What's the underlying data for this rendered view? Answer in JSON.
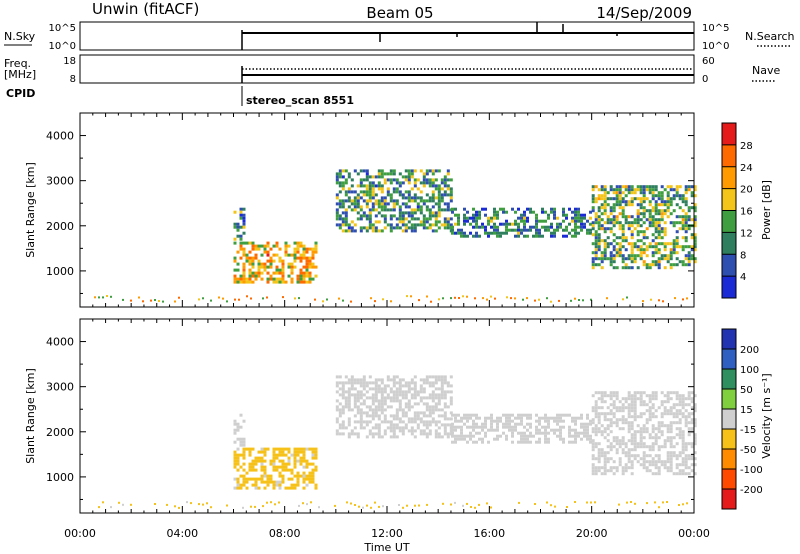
{
  "header": {
    "station": "Unwin (fitACF)",
    "beam": "Beam 05",
    "date": "14/Sep/2009"
  },
  "panels": {
    "nsky": {
      "left_label": "N.Sky",
      "right_label": "N.Search",
      "left_ticks": [
        "10^5",
        "10^0"
      ],
      "right_ticks": [
        "10^5",
        "10^0"
      ]
    },
    "freq": {
      "left_label_1": "Freq.",
      "left_label_2": "[MHz]",
      "right_label": "Nave",
      "left_ticks": [
        "18",
        "8"
      ],
      "right_ticks": [
        "60",
        "0"
      ]
    },
    "cpid": {
      "label": "CPID",
      "value": "stereo_scan 8551"
    },
    "power": {
      "ylabel": "Slant Range [km]",
      "colorbar_label": "Power [dB]",
      "colorbar_ticks": [
        "28",
        "24",
        "20",
        "16",
        "12",
        "8",
        "4"
      ],
      "colorbar_colors": [
        "#e51b1b",
        "#ff6a00",
        "#ff9a00",
        "#f3c51a",
        "#3f9f40",
        "#2f7f5f",
        "#2f4fb0",
        "#1a2bd6"
      ]
    },
    "velocity": {
      "ylabel": "Slant Range [km]",
      "colorbar_label": "Velocity [m s⁻¹]",
      "colorbar_ticks": [
        "200",
        "100",
        "50",
        "15",
        "-15",
        "-50",
        "-100",
        "-200"
      ],
      "colorbar_colors": [
        "#2133b0",
        "#2f5fc0",
        "#2f8f5f",
        "#7fcf3f",
        "#cfcfcf",
        "#f6c21a",
        "#ff8c00",
        "#ff4a00",
        "#e51b1b"
      ]
    }
  },
  "xaxis": {
    "label": "Time UT",
    "ticks": [
      "00:00",
      "04:00",
      "08:00",
      "12:00",
      "16:00",
      "20:00",
      "00:00"
    ]
  },
  "chart_data": [
    {
      "type": "heatmap",
      "title": "Power",
      "xlabel": "Time UT",
      "ylabel": "Slant Range [km]",
      "xlim": [
        0,
        24
      ],
      "ylim": [
        200,
        4500
      ],
      "yticks": [
        1000,
        2000,
        3000,
        4000
      ],
      "colorbar": {
        "label": "Power [dB]",
        "range": [
          0,
          30
        ]
      },
      "regions": [
        {
          "t_start": 6.0,
          "t_end": 6.4,
          "range_min": 1700,
          "range_max": 2400,
          "value": 8
        },
        {
          "t_start": 6.0,
          "t_end": 9.2,
          "range_min": 750,
          "range_max": 1650,
          "value": 20
        },
        {
          "t_start": 10.0,
          "t_end": 14.5,
          "range_min": 1900,
          "range_max": 3250,
          "value": 10
        },
        {
          "t_start": 14.5,
          "t_end": 20.0,
          "range_min": 1750,
          "range_max": 2400,
          "value": 8
        },
        {
          "t_start": 20.0,
          "t_end": 24.0,
          "range_min": 1100,
          "range_max": 2900,
          "value": 12
        }
      ]
    },
    {
      "type": "heatmap",
      "title": "Velocity",
      "xlabel": "Time UT",
      "ylabel": "Slant Range [km]",
      "xlim": [
        0,
        24
      ],
      "ylim": [
        200,
        4500
      ],
      "yticks": [
        1000,
        2000,
        3000,
        4000
      ],
      "colorbar": {
        "label": "Velocity [m s⁻¹]",
        "range": [
          -200,
          200
        ]
      },
      "regions": [
        {
          "t_start": 6.0,
          "t_end": 6.4,
          "range_min": 1700,
          "range_max": 2400,
          "value": 0
        },
        {
          "t_start": 6.0,
          "t_end": 9.2,
          "range_min": 750,
          "range_max": 1650,
          "value": -40
        },
        {
          "t_start": 10.0,
          "t_end": 14.5,
          "range_min": 1900,
          "range_max": 3250,
          "value": 0
        },
        {
          "t_start": 14.5,
          "t_end": 20.0,
          "range_min": 1750,
          "range_max": 2400,
          "value": 0
        },
        {
          "t_start": 20.0,
          "t_end": 24.0,
          "range_min": 1100,
          "range_max": 2900,
          "value": 0
        }
      ]
    }
  ]
}
